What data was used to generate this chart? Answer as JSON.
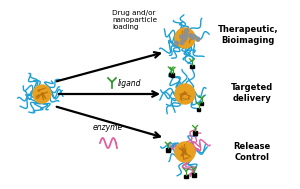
{
  "bg_color": "#ffffff",
  "blue_color": "#1E9FD4",
  "orange_color": "#E8A020",
  "green_color": "#2EA020",
  "pink_color": "#E060A0",
  "black_color": "#000000",
  "gray_color": "#909090",
  "dark_green": "#2A9020",
  "title1": "Therapeutic,\nBioimaging",
  "title2": "Targeted\ndelivery",
  "title3": "Release\nControl",
  "label_top": "Drug and/or\nnanoparticle\nloading",
  "label_mid": "ligand",
  "label_bot": "enzyme",
  "figsize": [
    3.0,
    1.89
  ],
  "dpi": 100
}
